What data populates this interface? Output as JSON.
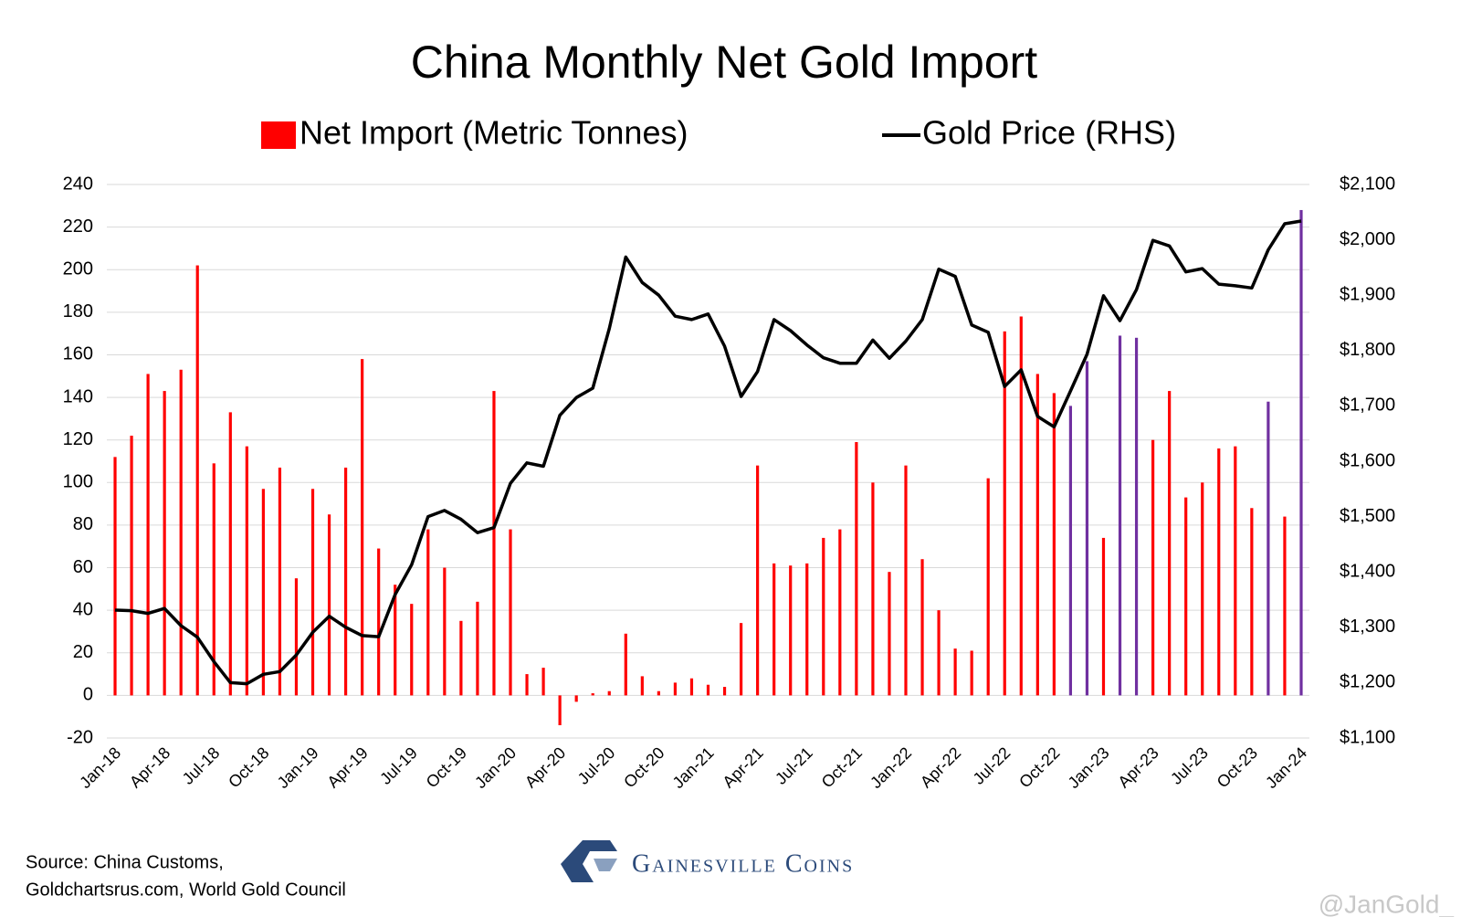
{
  "chart_data": {
    "type": "bar_line",
    "title": "China Monthly Net Gold Import",
    "categories": [
      "Jan-18",
      null,
      null,
      "Apr-18",
      null,
      null,
      "Jul-18",
      null,
      null,
      "Oct-18",
      null,
      null,
      "Jan-19",
      null,
      null,
      "Apr-19",
      null,
      null,
      "Jul-19",
      null,
      null,
      "Oct-19",
      null,
      null,
      "Jan-20",
      null,
      null,
      "Apr-20",
      null,
      null,
      "Jul-20",
      null,
      null,
      "Oct-20",
      null,
      null,
      "Jan-21",
      null,
      null,
      "Apr-21",
      null,
      null,
      "Jul-21",
      null,
      null,
      "Oct-21",
      null,
      null,
      "Jan-22",
      null,
      null,
      "Apr-22",
      null,
      null,
      "Jul-22",
      null,
      null,
      "Oct-22",
      null,
      null,
      "Jan-23",
      null,
      null,
      "Apr-23",
      null,
      null,
      "Jul-23",
      null,
      null,
      "Oct-23",
      null,
      null,
      "Jan-24"
    ],
    "series": [
      {
        "name": "Net Import (Metric Tonnes)",
        "type": "bar",
        "color": "#ff0000",
        "values": [
          112,
          122,
          151,
          143,
          153,
          202,
          109,
          133,
          117,
          97,
          107,
          55,
          97,
          85,
          107,
          158,
          69,
          52,
          43,
          78,
          60,
          35,
          44,
          143,
          78,
          10,
          13,
          -14,
          -3,
          1,
          2,
          29,
          9,
          2,
          6,
          8,
          5,
          4,
          34,
          108,
          62,
          61,
          62,
          74,
          78,
          119,
          100,
          58,
          108,
          64,
          40,
          22,
          21,
          102,
          171,
          178,
          151,
          142,
          136,
          157,
          74,
          169,
          168,
          120,
          143,
          93,
          100,
          116,
          117,
          88,
          138,
          84,
          228
        ],
        "colors": [
          "#ff0000",
          "#ff0000",
          "#ff0000",
          "#ff0000",
          "#ff0000",
          "#ff0000",
          "#ff0000",
          "#ff0000",
          "#ff0000",
          "#ff0000",
          "#ff0000",
          "#ff0000",
          "#ff0000",
          "#ff0000",
          "#ff0000",
          "#ff0000",
          "#ff0000",
          "#ff0000",
          "#ff0000",
          "#ff0000",
          "#ff0000",
          "#ff0000",
          "#ff0000",
          "#ff0000",
          "#ff0000",
          "#ff0000",
          "#ff0000",
          "#ff0000",
          "#ff0000",
          "#ff0000",
          "#ff0000",
          "#ff0000",
          "#ff0000",
          "#ff0000",
          "#ff0000",
          "#ff0000",
          "#ff0000",
          "#ff0000",
          "#ff0000",
          "#ff0000",
          "#ff0000",
          "#ff0000",
          "#ff0000",
          "#ff0000",
          "#ff0000",
          "#ff0000",
          "#ff0000",
          "#ff0000",
          "#ff0000",
          "#ff0000",
          "#ff0000",
          "#ff0000",
          "#ff0000",
          "#ff0000",
          "#ff0000",
          "#ff0000",
          "#ff0000",
          "#ff0000",
          "#7030a0",
          "#7030a0",
          "#ff0000",
          "#7030a0",
          "#7030a0",
          "#ff0000",
          "#ff0000",
          "#ff0000",
          "#ff0000",
          "#ff0000",
          "#ff0000",
          "#ff0000",
          "#7030a0",
          "#ff0000",
          "#7030a0"
        ]
      },
      {
        "name": "Gold Price (RHS)",
        "type": "line",
        "axis": "y2",
        "color": "#000000",
        "values": [
          1331,
          1330,
          1325,
          1334,
          1303,
          1282,
          1238,
          1200,
          1198,
          1215,
          1220,
          1250,
          1291,
          1320,
          1300,
          1285,
          1283,
          1359,
          1413,
          1500,
          1511,
          1495,
          1471,
          1480,
          1560,
          1597,
          1591,
          1683,
          1715,
          1732,
          1840,
          1969,
          1923,
          1900,
          1862,
          1856,
          1866,
          1808,
          1717,
          1762,
          1856,
          1836,
          1810,
          1787,
          1777,
          1777,
          1819,
          1786,
          1817,
          1856,
          1947,
          1934,
          1846,
          1833,
          1735,
          1765,
          1681,
          1662,
          1727,
          1793,
          1899,
          1854,
          1910,
          1999,
          1989,
          1942,
          1948,
          1920,
          1917,
          1913,
          1982,
          2029,
          2034
        ]
      }
    ],
    "ylim": [
      -20,
      240
    ],
    "yticks": [
      -20,
      0,
      20,
      40,
      60,
      80,
      100,
      120,
      140,
      160,
      180,
      200,
      220,
      240
    ],
    "y2lim": [
      1100,
      2100
    ],
    "y2ticks": [
      {
        "value": 1100,
        "label": "$1,100"
      },
      {
        "value": 1200,
        "label": "$1,200"
      },
      {
        "value": 1300,
        "label": "$1,300"
      },
      {
        "value": 1400,
        "label": "$1,400"
      },
      {
        "value": 1500,
        "label": "$1,500"
      },
      {
        "value": 1600,
        "label": "$1,600"
      },
      {
        "value": 1700,
        "label": "$1,700"
      },
      {
        "value": 1800,
        "label": "$1,800"
      },
      {
        "value": 1900,
        "label": "$1,900"
      },
      {
        "value": 2000,
        "label": "$2,000"
      },
      {
        "value": 2100,
        "label": "$2,100"
      }
    ],
    "grid": true,
    "source": [
      "Source: China Customs,",
      "Goldchartsrus.com, World Gold Council"
    ],
    "logo": "Gainesville Coins",
    "watermark": "@JanGold_"
  }
}
